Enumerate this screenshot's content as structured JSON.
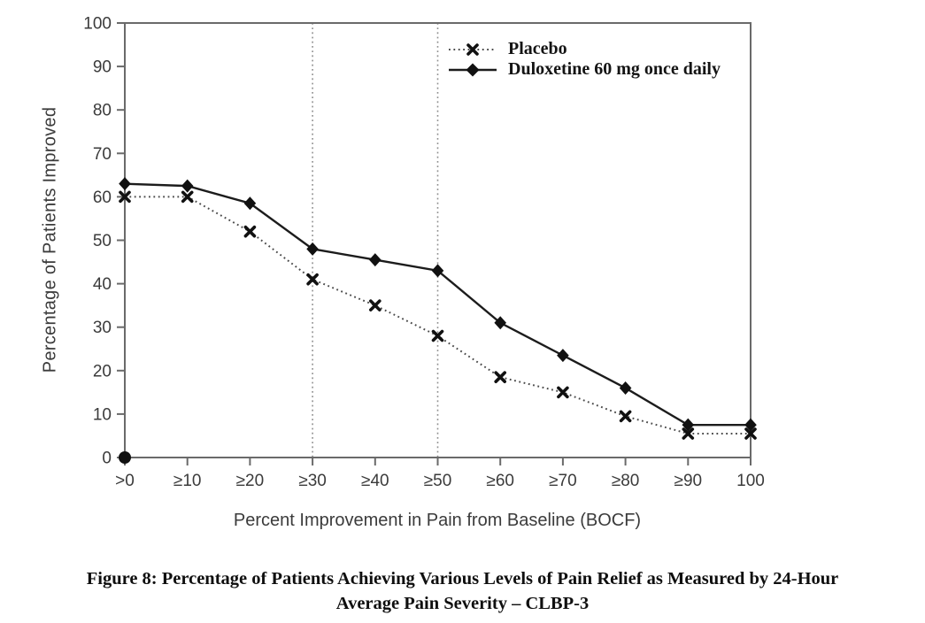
{
  "figure": {
    "caption_line1": "Figure 8: Percentage of Patients Achieving Various Levels of Pain Relief as Measured by 24-Hour",
    "caption_line2": "Average Pain Severity – CLBP-3"
  },
  "chart_data": {
    "type": "line",
    "title": "",
    "xlabel": "Percent Improvement in Pain from Baseline (BOCF)",
    "ylabel": "Percentage of Patients Improved",
    "categories": [
      ">0",
      "≥10",
      "≥20",
      "≥30",
      "≥40",
      "≥50",
      "≥60",
      "≥70",
      "≥80",
      "≥90",
      "100"
    ],
    "series": [
      {
        "name": "Placebo",
        "marker": "x",
        "line_style": "dotted",
        "color": "#4a4a4a",
        "values": [
          60,
          60,
          52,
          41,
          35,
          28,
          18.5,
          15,
          9.5,
          5.5,
          5.5
        ]
      },
      {
        "name": "Duloxetine 60 mg once daily",
        "marker": "diamond",
        "line_style": "solid",
        "color": "#1c1c1c",
        "values": [
          63,
          62.5,
          58.5,
          48,
          45.5,
          43,
          31,
          23.5,
          16,
          7.5,
          7.5
        ]
      }
    ],
    "ylim": [
      0,
      100
    ],
    "ytick_step": 10,
    "grid_vertical_at": [
      "≥30",
      "≥50"
    ],
    "legend_position": "top-right-inside",
    "origin_marker": true,
    "marker_color": "#111111",
    "axis_color": "#6a6a6a",
    "grid_color": "#8f8f8f",
    "tick_label_color": "#3b3b3b"
  }
}
